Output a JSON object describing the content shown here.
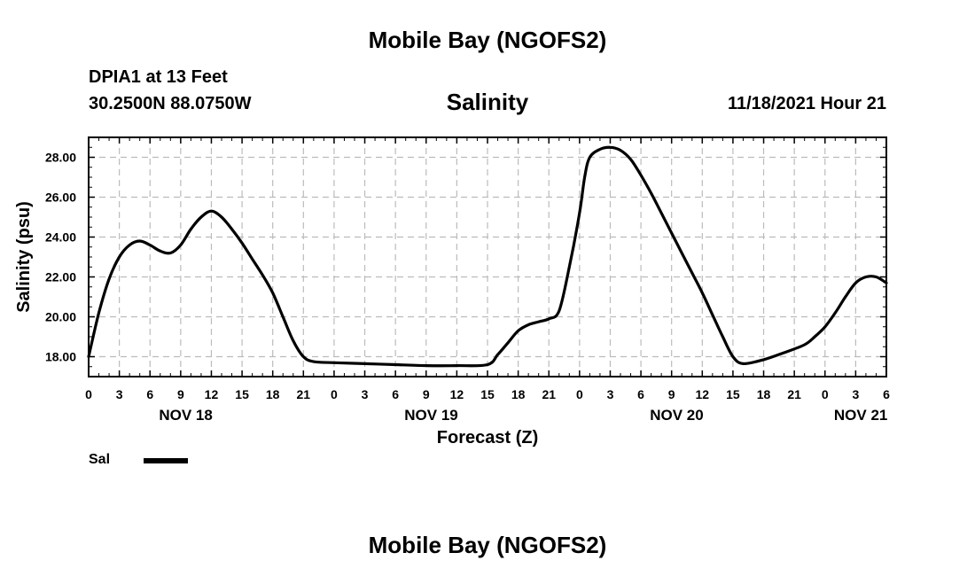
{
  "header": {
    "title": "Mobile Bay (NGOFS2)",
    "station": "DPIA1 at 13 Feet",
    "coords": "30.2500N  88.0750W",
    "timestamp": "11/18/2021 Hour 21"
  },
  "footer": {
    "title": "Mobile Bay (NGOFS2)"
  },
  "chart_data": {
    "type": "line",
    "title": "Salinity",
    "xlabel": "Forecast (Z)",
    "ylabel": "Salinity (psu)",
    "x_unit": "hours from Nov 18 00Z",
    "xlim": [
      0,
      78
    ],
    "ylim": [
      17,
      29
    ],
    "yticks": [
      18,
      20,
      22,
      24,
      26,
      28
    ],
    "ytick_labels": [
      "18.00",
      "20.00",
      "22.00",
      "24.00",
      "26.00",
      "28.00"
    ],
    "xticks": [
      0,
      3,
      6,
      9,
      12,
      15,
      18,
      21,
      24,
      27,
      30,
      33,
      36,
      39,
      42,
      45,
      48,
      51,
      54,
      57,
      60,
      63,
      66,
      69,
      72,
      75,
      78
    ],
    "xtick_labels": [
      "0",
      "3",
      "6",
      "9",
      "12",
      "15",
      "18",
      "21",
      "0",
      "3",
      "6",
      "9",
      "12",
      "15",
      "18",
      "21",
      "0",
      "3",
      "6",
      "9",
      "12",
      "15",
      "18",
      "21",
      "0",
      "3",
      "6"
    ],
    "day_labels": [
      {
        "hour": 9.5,
        "label": "NOV 18"
      },
      {
        "hour": 33.5,
        "label": "NOV 19"
      },
      {
        "hour": 57.5,
        "label": "NOV 20"
      },
      {
        "hour": 75.5,
        "label": "NOV 21"
      }
    ],
    "grid": true,
    "legend_position": "bottom-left",
    "series": [
      {
        "name": "Sal",
        "color": "#000000",
        "x": [
          0,
          1,
          2,
          3,
          4,
          5,
          6,
          7,
          8,
          9,
          10,
          11,
          12,
          13,
          14,
          15,
          16,
          17,
          18,
          19,
          20,
          21,
          22,
          24,
          27,
          30,
          33,
          36,
          39,
          40,
          41,
          42,
          43,
          44,
          45,
          46,
          47,
          48,
          48.5,
          49,
          50,
          51,
          52,
          53,
          54,
          55,
          56,
          57,
          58,
          59,
          60,
          61,
          62,
          63,
          64,
          66,
          68,
          70,
          71,
          72,
          73,
          74,
          75,
          76,
          77,
          78
        ],
        "y": [
          18.0,
          20.2,
          21.9,
          23.0,
          23.6,
          23.8,
          23.6,
          23.3,
          23.2,
          23.6,
          24.4,
          25.0,
          25.3,
          25.0,
          24.4,
          23.7,
          22.9,
          22.1,
          21.2,
          20.0,
          18.8,
          18.0,
          17.75,
          17.7,
          17.65,
          17.6,
          17.55,
          17.55,
          17.6,
          18.1,
          18.7,
          19.3,
          19.6,
          19.75,
          19.9,
          20.3,
          22.5,
          25.2,
          27.0,
          28.0,
          28.4,
          28.5,
          28.35,
          27.9,
          27.1,
          26.2,
          25.2,
          24.2,
          23.2,
          22.2,
          21.2,
          20.1,
          19.0,
          18.0,
          17.65,
          17.85,
          18.2,
          18.6,
          19.0,
          19.5,
          20.2,
          21.0,
          21.7,
          22.0,
          22.0,
          21.7
        ]
      }
    ]
  }
}
